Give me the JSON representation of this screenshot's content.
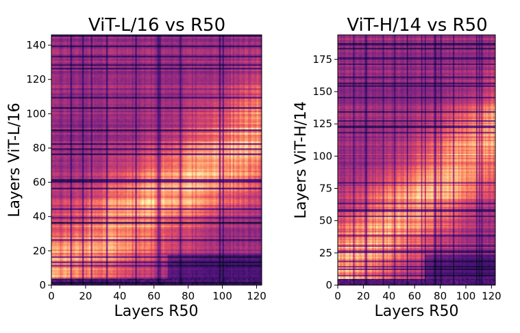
{
  "chart_data": [
    {
      "type": "heatmap",
      "title": "ViT-L/16 vs R50",
      "xlabel": "Layers R50",
      "ylabel": "Layers ViT-L/16",
      "colormap": "magma",
      "xlim": [
        0,
        122
      ],
      "ylim": [
        0,
        146
      ],
      "xticks": [
        "0",
        "20",
        "40",
        "60",
        "80",
        "100",
        "120"
      ],
      "yticks": [
        "0",
        "20",
        "40",
        "60",
        "80",
        "100",
        "120",
        "140"
      ],
      "x_count": 123,
      "y_count": 146
    },
    {
      "type": "heatmap",
      "title": "ViT-H/14 vs R50",
      "xlabel": "Layers R50",
      "ylabel": "Layers ViT-H/14",
      "colormap": "magma",
      "xlim": [
        0,
        122
      ],
      "ylim": [
        0,
        194
      ],
      "xticks": [
        "0",
        "20",
        "40",
        "60",
        "80",
        "100",
        "120"
      ],
      "yticks": [
        "0",
        "25",
        "50",
        "75",
        "100",
        "125",
        "150",
        "175"
      ],
      "x_count": 123,
      "y_count": 194
    }
  ]
}
